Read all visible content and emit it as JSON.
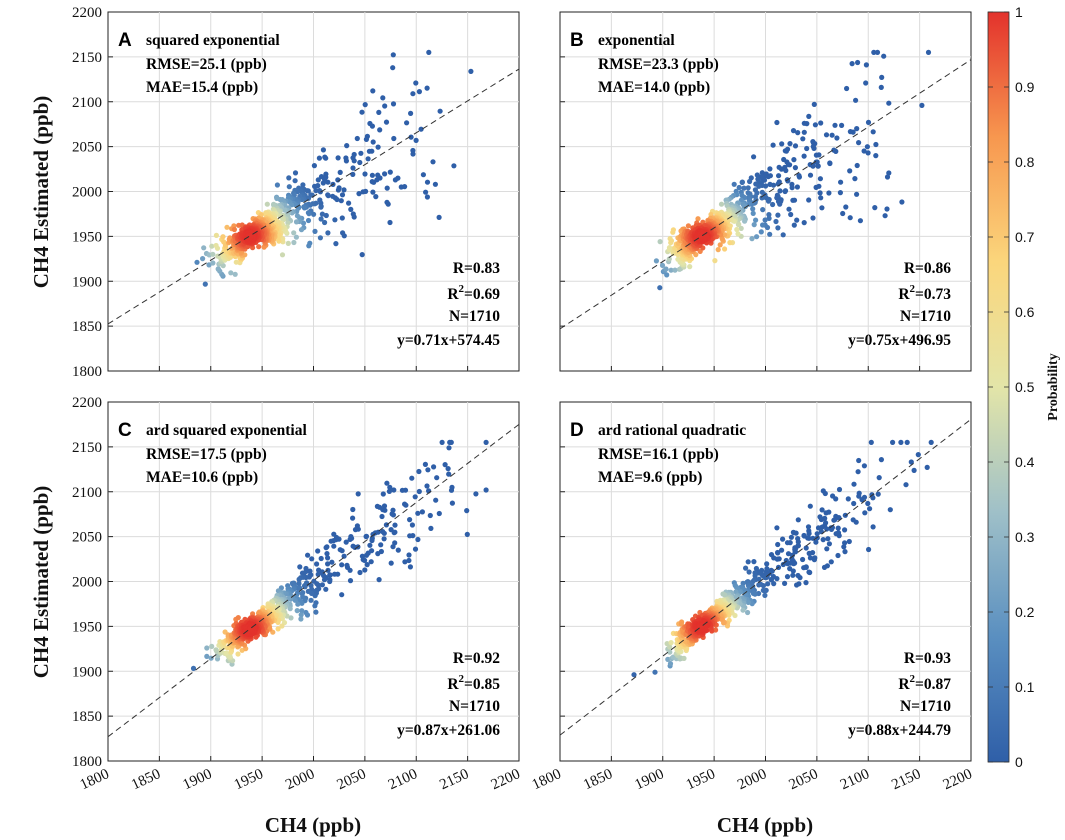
{
  "chart_data": {
    "type": "scatter",
    "x_label": "CH4 (ppb)",
    "y_label": "CH4 Estimated (ppb)",
    "xlim": [
      1800,
      2200
    ],
    "ylim": [
      1800,
      2200
    ],
    "x_ticks": [
      1800,
      1850,
      1900,
      1950,
      2000,
      2050,
      2100,
      2150,
      2200
    ],
    "y_ticks": [
      1800,
      1850,
      1900,
      1950,
      2000,
      2050,
      2100,
      2150,
      2200
    ],
    "x_tick_labels": [
      "1800",
      "1850",
      "1900",
      "1950",
      "2000",
      "2050",
      "2100",
      "2150",
      "2200"
    ],
    "y_tick_labels": [
      "1800",
      "1850",
      "1900",
      "1950",
      "2000",
      "2050",
      "2100",
      "2150",
      "2200"
    ],
    "colorbar": {
      "title": "Probability",
      "range": [
        0,
        1
      ],
      "ticks": [
        0,
        0.1,
        0.2,
        0.3,
        0.4,
        0.5,
        0.6,
        0.7,
        0.8,
        0.9,
        1
      ],
      "tick_labels": [
        "0",
        "0.1",
        "0.2",
        "0.3",
        "0.4",
        "0.5",
        "0.6",
        "0.7",
        "0.8",
        "0.9",
        "1"
      ],
      "colors": [
        "#2f5fa8",
        "#5a8fc0",
        "#9fc0c8",
        "#e3e5a8",
        "#fbd67c",
        "#f7974f",
        "#e3322c"
      ]
    },
    "n_points": 1710,
    "panels": [
      {
        "letter": "A",
        "title": "squared exponential",
        "rmse": "RMSE=25.1 (ppb)",
        "mae": "MAE=15.4 (ppb)",
        "r": "R=0.83",
        "r2_prefix": "R",
        "r2_sup": "2",
        "r2_value": "=0.69",
        "n": "N=1710",
        "fit": "y=0.71x+574.45",
        "slope": 0.71,
        "intercept": 574.45
      },
      {
        "letter": "B",
        "title": "exponential",
        "rmse": "RMSE=23.3 (ppb)",
        "mae": "MAE=14.0 (ppb)",
        "r": "R=0.86",
        "r2_prefix": "R",
        "r2_sup": "2",
        "r2_value": "=0.73",
        "n": "N=1710",
        "fit": "y=0.75x+496.95",
        "slope": 0.75,
        "intercept": 496.95
      },
      {
        "letter": "C",
        "title": "ard squared exponential",
        "rmse": "RMSE=17.5 (ppb)",
        "mae": "MAE=10.6 (ppb)",
        "r": "R=0.92",
        "r2_prefix": "R",
        "r2_sup": "2",
        "r2_value": "=0.85",
        "n": "N=1710",
        "fit": "y=0.87x+261.06",
        "slope": 0.87,
        "intercept": 261.06
      },
      {
        "letter": "D",
        "title": "ard rational quadratic",
        "rmse": "RMSE=16.1 (ppb)",
        "mae": "MAE=9.6 (ppb)",
        "r": "R=0.93",
        "r2_prefix": "R",
        "r2_sup": "2",
        "r2_value": "=0.87",
        "n": "N=1710",
        "fit": "y=0.88x+244.79",
        "slope": 0.88,
        "intercept": 244.79
      }
    ]
  }
}
